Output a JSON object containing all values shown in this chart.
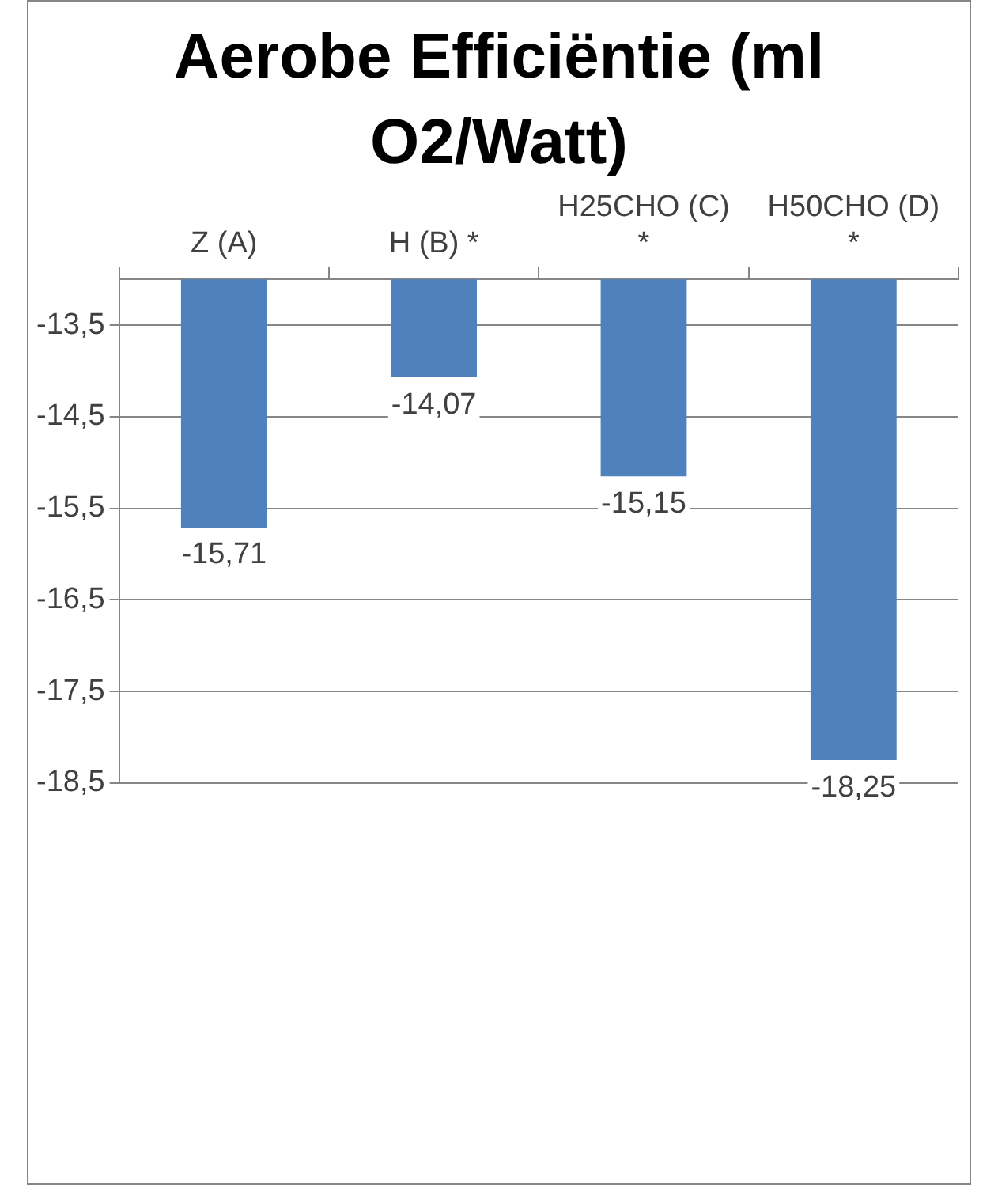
{
  "chart_data": {
    "type": "bar",
    "title": "Aerobe Efficiëntie (ml O2/Watt)",
    "categories": [
      "Z (A)",
      "H (B) *",
      "H25CHO (C) *",
      "H50CHO (D) *"
    ],
    "values": [
      -15.71,
      -14.07,
      -15.15,
      -18.25
    ],
    "value_labels": [
      "-15,71",
      "-14,07",
      "-15,15",
      "-18,25"
    ],
    "color": "#4f81bd",
    "ylim": [
      -18.5,
      -13
    ],
    "yticks": [
      {
        "value": -13.5,
        "label": "-13,5"
      },
      {
        "value": -14.5,
        "label": "-14,5"
      },
      {
        "value": -15.5,
        "label": "-15,5"
      },
      {
        "value": -16.5,
        "label": "-16,5"
      },
      {
        "value": -17.5,
        "label": "-17,5"
      },
      {
        "value": -18.5,
        "label": "-18,5"
      }
    ],
    "grid": "y",
    "legend": false
  }
}
